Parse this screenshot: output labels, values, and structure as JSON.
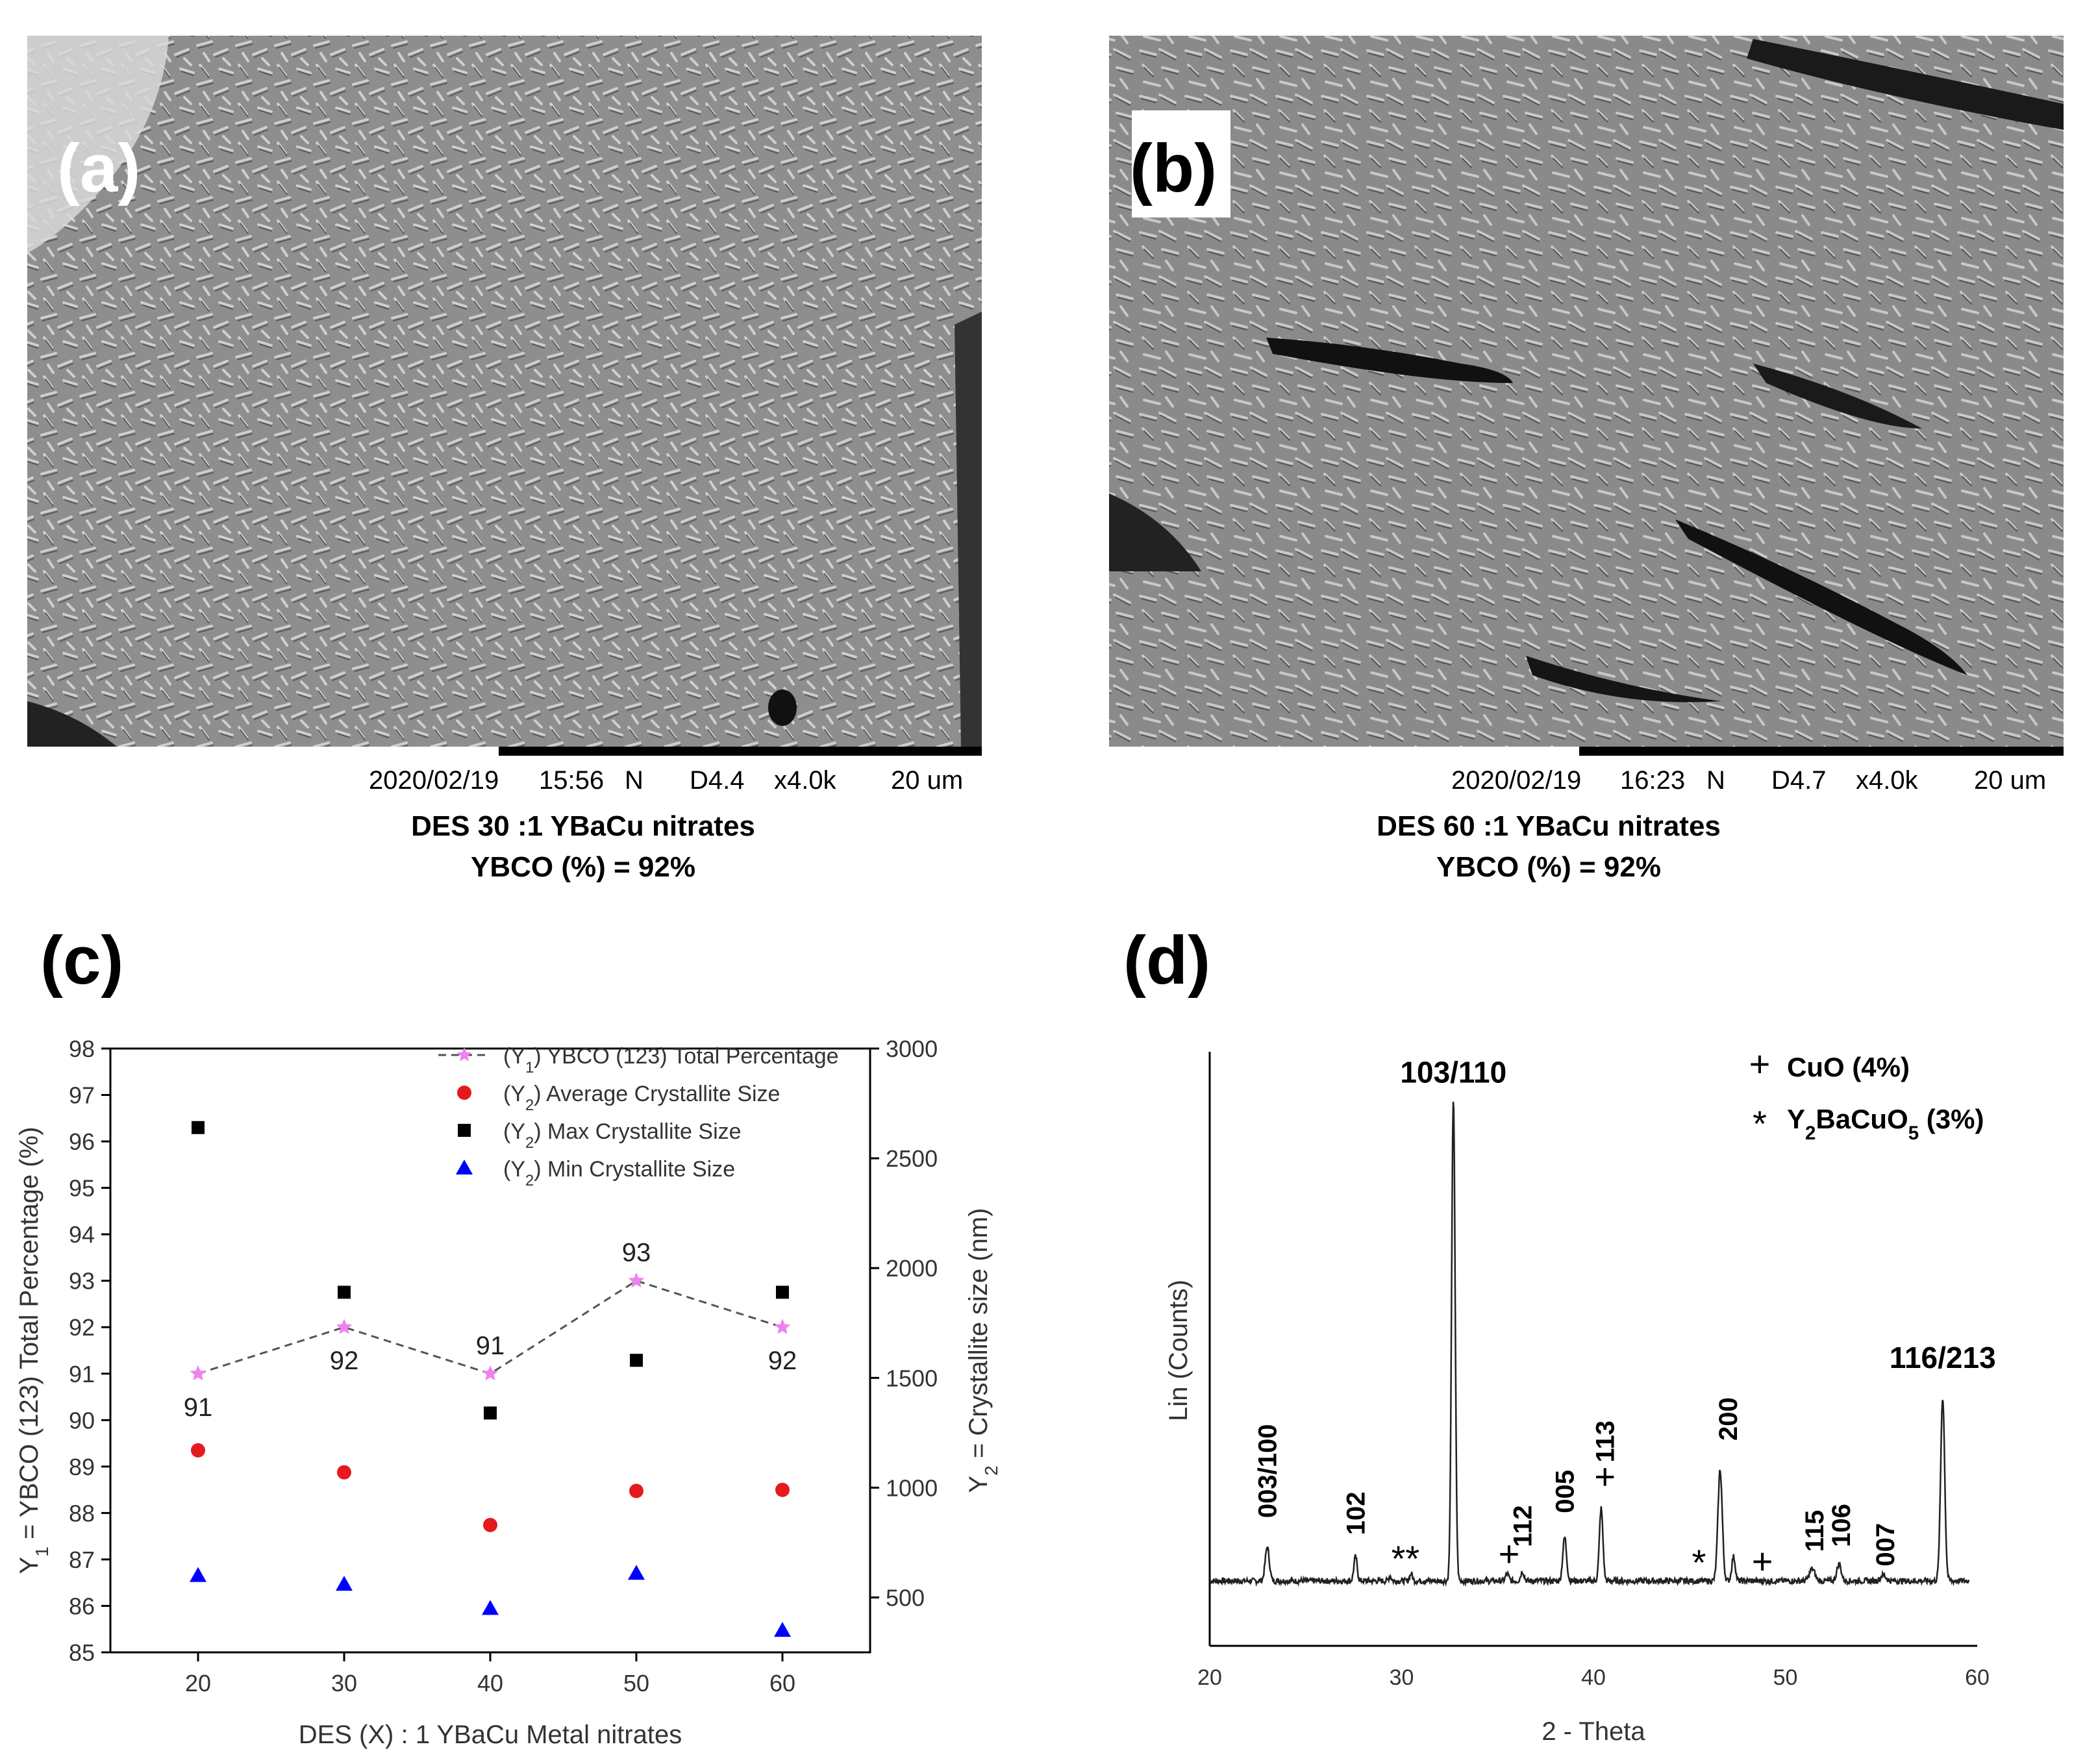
{
  "panels": {
    "a": {
      "label": "(a)",
      "sem_info": {
        "date": "2020/02/19",
        "time": "15:56",
        "mode": "N",
        "wd": "D4.4",
        "mag": "x4.0k",
        "scale": "20 um"
      },
      "caption_line1": "DES 30 :1 YBaCu nitrates",
      "caption_line2": "YBCO (%) = 92%"
    },
    "b": {
      "label": "(b)",
      "sem_info": {
        "date": "2020/02/19",
        "time": "16:23",
        "mode": "N",
        "wd": "D4.7",
        "mag": "x4.0k",
        "scale": "20 um"
      },
      "caption_line1": "DES 60 :1 YBaCu nitrates",
      "caption_line2": "YBCO (%) = 92%"
    },
    "c": {
      "label": "(c)"
    },
    "d": {
      "label": "(d)"
    }
  },
  "chart_data": [
    {
      "panel": "c",
      "type": "scatter",
      "xlabel": "DES (X) : 1 YBaCu Metal nitrates",
      "ylabel_left": "Y1 = YBCO (123) Total Percentage (%)",
      "ylabel_right": "Y2 = Crystallite size (nm)",
      "x": [
        20,
        30,
        40,
        50,
        60
      ],
      "xticks": [
        20,
        30,
        40,
        50,
        60
      ],
      "ylim_left": [
        85,
        98
      ],
      "yticks_left": [
        85,
        86,
        87,
        88,
        89,
        90,
        91,
        92,
        93,
        94,
        95,
        96,
        97,
        98
      ],
      "ylim_right": [
        250,
        3000
      ],
      "yticks_right": [
        500,
        1000,
        1500,
        2000,
        2500,
        3000
      ],
      "legend_position": "top-right",
      "series": [
        {
          "name": "(Y1) YBCO (123) Total Percentage",
          "axis": "left",
          "marker": "star-dashed-line",
          "color": "#ee82ee",
          "values": [
            91,
            92,
            91,
            93,
            92
          ],
          "labels": [
            "91",
            "92",
            "91",
            "93",
            "92"
          ]
        },
        {
          "name": "(Y2) Average Crystallite Size",
          "axis": "right",
          "marker": "circle",
          "color": "#e41a1c",
          "values": [
            1170,
            1070,
            830,
            985,
            990
          ]
        },
        {
          "name": "(Y2) Max Crystallite Size",
          "axis": "right",
          "marker": "square",
          "color": "#000000",
          "values": [
            2640,
            1890,
            1340,
            1580,
            1890
          ]
        },
        {
          "name": "(Y2) Min Crystallite Size",
          "axis": "right",
          "marker": "triangle",
          "color": "#0000ff",
          "values": [
            600,
            560,
            450,
            610,
            350
          ]
        }
      ]
    },
    {
      "panel": "d",
      "type": "line",
      "xlabel": "2 - Theta",
      "ylabel": "Lin (Counts)",
      "xlim": [
        20,
        60
      ],
      "xticks": [
        20,
        30,
        40,
        50,
        60
      ],
      "legend": [
        {
          "symbol": "+",
          "text": "CuO (4%)"
        },
        {
          "symbol": "*",
          "text": "Y2BaCuO5 (3%)"
        }
      ],
      "peaks": [
        {
          "x": 23.0,
          "height": 0.07,
          "width": 0.15
        },
        {
          "x": 27.6,
          "height": 0.05,
          "width": 0.12
        },
        {
          "x": 29.4,
          "height": 0.01,
          "width": 0.1
        },
        {
          "x": 30.5,
          "height": 0.015,
          "width": 0.1
        },
        {
          "x": 32.7,
          "height": 1.0,
          "width": 0.13
        },
        {
          "x": 35.5,
          "height": 0.015,
          "width": 0.12
        },
        {
          "x": 36.3,
          "height": 0.02,
          "width": 0.12
        },
        {
          "x": 38.5,
          "height": 0.09,
          "width": 0.14
        },
        {
          "x": 40.4,
          "height": 0.15,
          "width": 0.13
        },
        {
          "x": 46.6,
          "height": 0.23,
          "width": 0.16
        },
        {
          "x": 47.3,
          "height": 0.05,
          "width": 0.13
        },
        {
          "x": 51.4,
          "height": 0.025,
          "width": 0.2
        },
        {
          "x": 52.8,
          "height": 0.035,
          "width": 0.16
        },
        {
          "x": 55.1,
          "height": 0.012,
          "width": 0.2
        },
        {
          "x": 58.2,
          "height": 0.38,
          "width": 0.15
        }
      ],
      "annotations": [
        {
          "text": "003/100",
          "x": 23.0,
          "level": 0.13,
          "rotate": true
        },
        {
          "text": "102",
          "x": 27.6,
          "level": 0.095,
          "rotate": true
        },
        {
          "text": "**",
          "x": 30.2,
          "level": 0.02,
          "rotate": false
        },
        {
          "text": "103/110",
          "x": 32.7,
          "level": 1.03,
          "rotate": false
        },
        {
          "text": "+",
          "x": 35.6,
          "level": 0.03,
          "rotate": false
        },
        {
          "text": "112",
          "x": 36.3,
          "level": 0.07,
          "rotate": true
        },
        {
          "text": "005",
          "x": 38.5,
          "level": 0.14,
          "rotate": true
        },
        {
          "text": "+",
          "x": 40.6,
          "level": 0.19,
          "rotate": false
        },
        {
          "text": "113",
          "x": 40.6,
          "level": 0.245,
          "rotate": true
        },
        {
          "text": "*",
          "x": 45.5,
          "level": 0.012,
          "rotate": false
        },
        {
          "text": "200",
          "x": 47.0,
          "level": 0.29,
          "rotate": true
        },
        {
          "text": "+",
          "x": 48.8,
          "level": 0.015,
          "rotate": false
        },
        {
          "text": "115",
          "x": 51.5,
          "level": 0.06,
          "rotate": true
        },
        {
          "text": "106",
          "x": 52.9,
          "level": 0.07,
          "rotate": true
        },
        {
          "text": "007",
          "x": 55.2,
          "level": 0.03,
          "rotate": true
        },
        {
          "text": "116/213",
          "x": 58.2,
          "level": 0.44,
          "rotate": false
        }
      ]
    }
  ]
}
